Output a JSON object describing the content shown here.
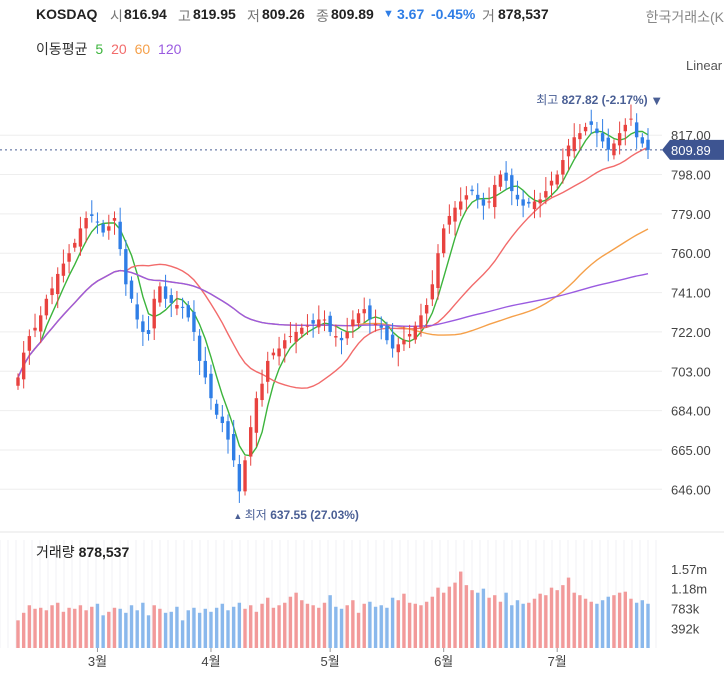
{
  "header": {
    "symbol": "KOSDAQ",
    "open_label": "시",
    "open": "816.94",
    "high_label": "고",
    "high": "819.95",
    "low_label": "저",
    "low": "809.26",
    "close_label": "종",
    "close": "809.89",
    "change_arrow": "▼",
    "change": "3.67",
    "change_pct": "-0.45%",
    "volume_label": "거",
    "volume": "878,537",
    "exchange": "한국거래소(K"
  },
  "ma_legend": {
    "label": "이동평균",
    "items": [
      {
        "period": "5",
        "color": "#3cb43c"
      },
      {
        "period": "20",
        "color": "#f26b6b"
      },
      {
        "period": "60",
        "color": "#f5a04a"
      },
      {
        "period": "120",
        "color": "#9a5be0"
      }
    ]
  },
  "scale_mode": "Linear",
  "chart_data": {
    "type": "candlestick",
    "y_ticks": [
      "817.00",
      "798.00",
      "779.00",
      "760.00",
      "741.00",
      "722.00",
      "703.00",
      "684.00",
      "665.00",
      "646.00"
    ],
    "ylim": [
      636,
      834
    ],
    "x_ticks": [
      {
        "label": "3월",
        "index": 14
      },
      {
        "label": "4월",
        "index": 34
      },
      {
        "label": "5월",
        "index": 55
      },
      {
        "label": "6월",
        "index": 75
      },
      {
        "label": "7월",
        "index": 95
      }
    ],
    "last_price": "809.89",
    "high_annotation": {
      "text": "최고",
      "value": "827.82 (-2.17%)",
      "arrow": "▼",
      "index": 112,
      "price": 827.82
    },
    "low_annotation": {
      "arrow": "▲",
      "text": "최저",
      "value": "637.55 (27.03%)",
      "index": 39,
      "price": 637.55
    },
    "closes": [
      700,
      712,
      720,
      724,
      730,
      738,
      743,
      750,
      755,
      760,
      765,
      772,
      777,
      778,
      775,
      770,
      773,
      777,
      762,
      745,
      738,
      728,
      722,
      721,
      738,
      744,
      738,
      736,
      735,
      734,
      729,
      722,
      708,
      700,
      690,
      682,
      678,
      670,
      660,
      645,
      660,
      676,
      690,
      697,
      708,
      712,
      714,
      718,
      720,
      722,
      724,
      725,
      726,
      728,
      728,
      722,
      720,
      718,
      722,
      728,
      731,
      733,
      728,
      726,
      724,
      718,
      714,
      716,
      718,
      721,
      725,
      730,
      735,
      745,
      760,
      772,
      778,
      782,
      785,
      788,
      790,
      786,
      783,
      785,
      793,
      798,
      795,
      790,
      786,
      783,
      784,
      785,
      786,
      790,
      795,
      798,
      805,
      812,
      816,
      818,
      821,
      822,
      818,
      814,
      810,
      813,
      818,
      822,
      825,
      816,
      813,
      809.89
    ],
    "volumes": [
      0.55,
      0.7,
      0.85,
      0.78,
      0.8,
      0.75,
      0.85,
      0.9,
      0.72,
      0.8,
      0.78,
      0.85,
      0.75,
      0.82,
      0.88,
      0.65,
      0.72,
      0.8,
      0.78,
      0.7,
      0.85,
      0.75,
      0.9,
      0.65,
      0.85,
      0.78,
      0.7,
      0.72,
      0.82,
      0.55,
      0.75,
      0.8,
      0.7,
      0.78,
      0.72,
      0.8,
      0.88,
      0.75,
      0.82,
      0.9,
      0.78,
      0.85,
      0.72,
      0.88,
      1.0,
      0.8,
      0.85,
      0.9,
      1.02,
      1.1,
      0.95,
      0.88,
      0.85,
      0.8,
      0.9,
      1.05,
      0.82,
      0.78,
      0.85,
      0.95,
      0.7,
      0.88,
      0.92,
      0.82,
      0.85,
      0.8,
      1.0,
      0.95,
      1.08,
      0.9,
      0.88,
      0.85,
      0.92,
      1.02,
      1.2,
      1.1,
      1.22,
      1.3,
      1.52,
      1.25,
      1.15,
      1.1,
      1.18,
      1.0,
      1.05,
      0.92,
      1.1,
      0.85,
      0.95,
      0.88,
      0.9,
      0.98,
      1.08,
      1.05,
      1.2,
      1.15,
      1.25,
      1.4,
      1.1,
      1.05,
      0.98,
      0.92,
      0.88,
      0.95,
      1.02,
      1.05,
      1.1,
      1.12,
      0.98,
      0.9,
      0.95,
      0.88
    ],
    "volume_ticks": [
      "1.57m",
      "1.18m",
      "783k",
      "392k"
    ],
    "volume_ticks_values": [
      1.57,
      1.18,
      0.783,
      0.392
    ],
    "volume_title": "거래량",
    "volume_value": "878,537",
    "colors": {
      "up": "#e8423f",
      "down": "#2f7ee6",
      "vol_up": "#f29a9a",
      "vol_down": "#8ab8ec",
      "ma5": "#3cb43c",
      "ma20": "#f26b6b",
      "ma60": "#f5a04a",
      "ma120": "#9a5be0"
    }
  }
}
